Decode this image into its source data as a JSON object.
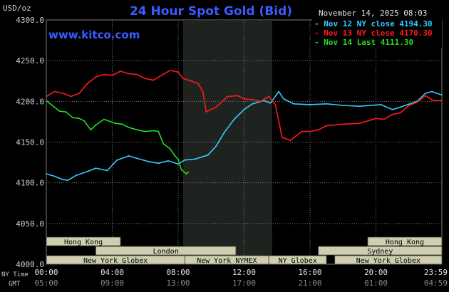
{
  "header": {
    "unit": "USD/oz",
    "title": "24 Hour Spot Gold (Bid)",
    "date": "November 14, 2025 08:03",
    "brand": "www.kitco.com"
  },
  "colors": {
    "background": "#000000",
    "title": "#3b5bff",
    "brand": "#3b5bff",
    "nov12": "#33ccff",
    "nov13": "#ff1a1a",
    "nov14": "#22dd22",
    "ny_session_band": "#1f231f",
    "grid": "#7a7a7a",
    "axis_text": "#cccccc",
    "session_fill": "#cfcfb0",
    "session_text": "#000000"
  },
  "chart_data": {
    "type": "line",
    "title": "24 Hour Spot Gold (Bid)",
    "ylabel": "USD/oz",
    "ylim": [
      4000,
      4300
    ],
    "xlim_hours": [
      0,
      24
    ],
    "y_ticks": [
      "4300.0",
      "4250.0",
      "4200.0",
      "4150.0",
      "4100.0",
      "4050.0",
      "4000.0"
    ],
    "x_ticks_ny": [
      "00:00",
      "04:00",
      "08:00",
      "12:00",
      "16:00",
      "20:00",
      "23:59"
    ],
    "x_ticks_gmt": [
      "05:00",
      "09:00",
      "13:00",
      "17:00",
      "21:00",
      "01:00",
      "04:59"
    ],
    "axis_row_labels": {
      "ny": "NY Time",
      "gmt": "GMT"
    },
    "grid": true,
    "legend_position": "top-right",
    "series": [
      {
        "name": "Nov 12 NY close 4194.30",
        "color": "#33ccff",
        "points": [
          [
            0,
            4111
          ],
          [
            0.5,
            4108
          ],
          [
            1,
            4104
          ],
          [
            1.3,
            4103
          ],
          [
            1.8,
            4109
          ],
          [
            2.5,
            4114
          ],
          [
            3,
            4118
          ],
          [
            3.7,
            4115
          ],
          [
            4.3,
            4128
          ],
          [
            5,
            4133
          ],
          [
            5.5,
            4130
          ],
          [
            6.2,
            4126
          ],
          [
            6.8,
            4124
          ],
          [
            7.4,
            4127
          ],
          [
            8,
            4123
          ],
          [
            8.4,
            4128
          ],
          [
            9,
            4129
          ],
          [
            9.8,
            4134
          ],
          [
            10.3,
            4145
          ],
          [
            10.8,
            4162
          ],
          [
            11.4,
            4178
          ],
          [
            12,
            4190
          ],
          [
            12.5,
            4197
          ],
          [
            13.2,
            4201
          ],
          [
            13.6,
            4198
          ],
          [
            14.1,
            4212
          ],
          [
            14.4,
            4203
          ],
          [
            15,
            4197
          ],
          [
            16,
            4196
          ],
          [
            17,
            4197
          ],
          [
            18,
            4195
          ],
          [
            19,
            4194
          ],
          [
            20.3,
            4196
          ],
          [
            21,
            4190
          ],
          [
            21.5,
            4193
          ],
          [
            22.5,
            4200
          ],
          [
            23,
            4210
          ],
          [
            23.4,
            4212
          ],
          [
            23.99,
            4208
          ]
        ]
      },
      {
        "name": "Nov 13 NY close 4170.30",
        "color": "#ff1a1a",
        "points": [
          [
            0,
            4206
          ],
          [
            0.5,
            4212
          ],
          [
            1,
            4210
          ],
          [
            1.5,
            4206
          ],
          [
            2,
            4210
          ],
          [
            2.5,
            4222
          ],
          [
            3,
            4230
          ],
          [
            3.5,
            4233
          ],
          [
            4,
            4232
          ],
          [
            4.5,
            4237
          ],
          [
            5,
            4234
          ],
          [
            5.5,
            4233
          ],
          [
            6,
            4228
          ],
          [
            6.5,
            4226
          ],
          [
            7,
            4232
          ],
          [
            7.5,
            4238
          ],
          [
            8,
            4236
          ],
          [
            8.3,
            4228
          ],
          [
            8.8,
            4225
          ],
          [
            9.2,
            4222
          ],
          [
            9.5,
            4212
          ],
          [
            9.7,
            4187
          ],
          [
            10.3,
            4193
          ],
          [
            11,
            4206
          ],
          [
            11.6,
            4207
          ],
          [
            12,
            4203
          ],
          [
            12.5,
            4202
          ],
          [
            13,
            4200
          ],
          [
            13.5,
            4206
          ],
          [
            13.9,
            4196
          ],
          [
            14.3,
            4156
          ],
          [
            14.8,
            4152
          ],
          [
            15.5,
            4163
          ],
          [
            16,
            4163
          ],
          [
            16.5,
            4165
          ],
          [
            17,
            4170
          ],
          [
            18,
            4172
          ],
          [
            19,
            4173
          ],
          [
            19.5,
            4176
          ],
          [
            20,
            4179
          ],
          [
            20.5,
            4178
          ],
          [
            21,
            4184
          ],
          [
            21.5,
            4186
          ],
          [
            22,
            4195
          ],
          [
            22.5,
            4199
          ],
          [
            23,
            4207
          ],
          [
            23.5,
            4201
          ],
          [
            23.99,
            4201
          ]
        ]
      },
      {
        "name": "Nov 14 Last 4111.30",
        "color": "#22dd22",
        "points": [
          [
            0,
            4201
          ],
          [
            0.3,
            4196
          ],
          [
            0.8,
            4188
          ],
          [
            1.2,
            4187
          ],
          [
            1.6,
            4180
          ],
          [
            2,
            4179
          ],
          [
            2.3,
            4176
          ],
          [
            2.7,
            4165
          ],
          [
            3,
            4171
          ],
          [
            3.5,
            4178
          ],
          [
            4.2,
            4173
          ],
          [
            4.6,
            4172
          ],
          [
            5,
            4168
          ],
          [
            5.5,
            4165
          ],
          [
            6,
            4163
          ],
          [
            6.5,
            4164
          ],
          [
            6.8,
            4163
          ],
          [
            7.1,
            4148
          ],
          [
            7.5,
            4142
          ],
          [
            7.8,
            4133
          ],
          [
            8,
            4129
          ],
          [
            8.2,
            4116
          ],
          [
            8.5,
            4111
          ],
          [
            8.6,
            4113
          ]
        ]
      }
    ],
    "shaded_band": {
      "label": "NY session",
      "from_hour": 8.3,
      "to_hour": 13.7
    },
    "sessions": [
      {
        "label": "Hong Kong",
        "start": 0,
        "end": 4.5,
        "row": 0
      },
      {
        "label": "London",
        "start": 3,
        "end": 11.5,
        "row": 1
      },
      {
        "label": "New York Globex",
        "start": 0,
        "end": 8.4,
        "row": 2
      },
      {
        "label": "New York NYMEX",
        "start": 8.4,
        "end": 13.5,
        "row": 2
      },
      {
        "label": "NY Globex",
        "start": 13.5,
        "end": 17,
        "row": 2
      },
      {
        "label": "Hong Kong",
        "start": 19.5,
        "end": 24,
        "row": 0
      },
      {
        "label": "Sydney",
        "start": 16.5,
        "end": 24,
        "row": 1
      },
      {
        "label": "New York Globex",
        "start": 17.5,
        "end": 24,
        "row": 2
      }
    ]
  }
}
